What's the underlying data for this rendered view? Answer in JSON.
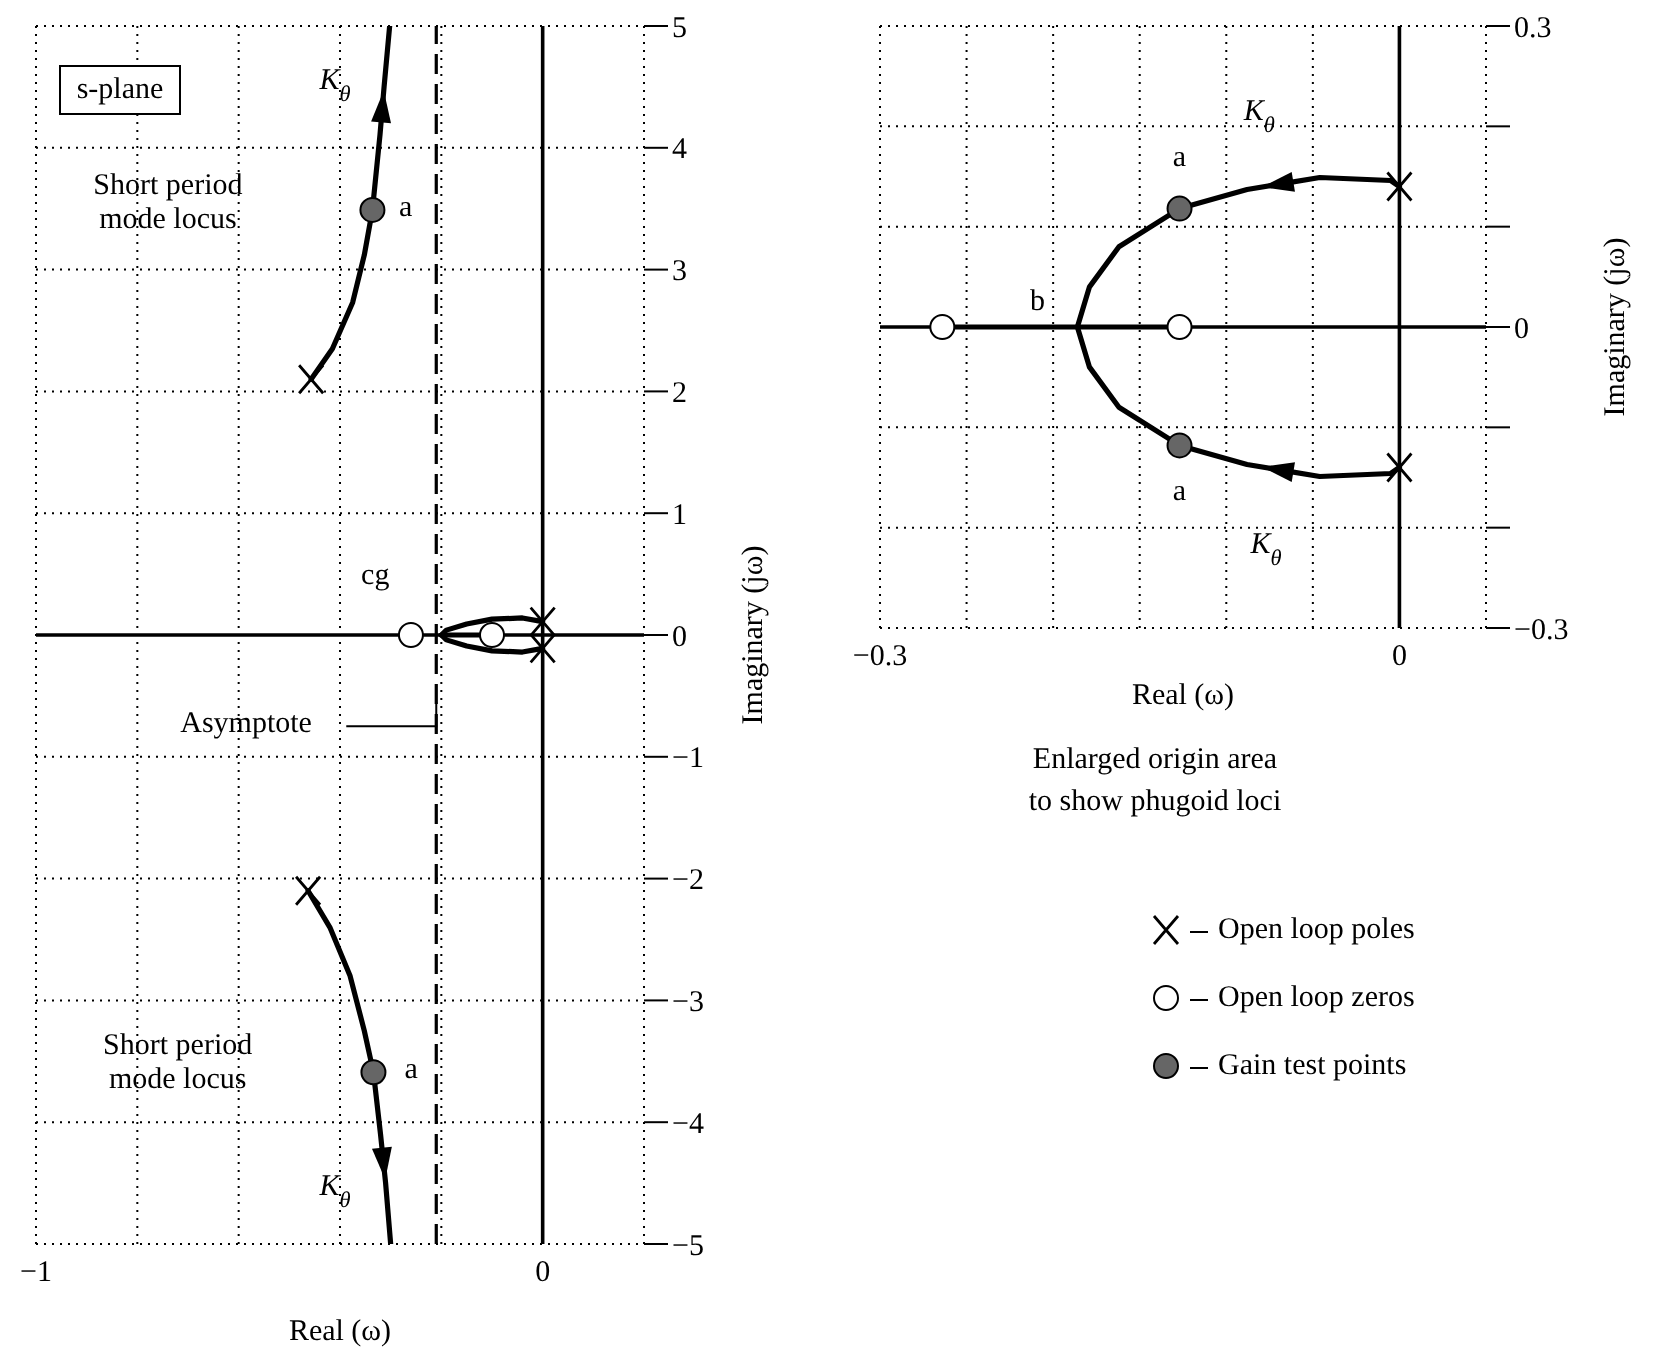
{
  "chart_data": [
    {
      "type": "scatter",
      "xlabel": "Real (ω)",
      "ylabel": "Imaginary (jω)",
      "xlim": [
        -1,
        0.2
      ],
      "ylim": [
        -5,
        5
      ],
      "xticks": [
        {
          "value": -1,
          "label": "−1"
        },
        {
          "value": -0.8,
          "label": null
        },
        {
          "value": -0.6,
          "label": null
        },
        {
          "value": -0.4,
          "label": null
        },
        {
          "value": -0.2,
          "label": null
        },
        0,
        {
          "value": 0.2,
          "label": null
        }
      ],
      "yticks": [
        {
          "value": -5,
          "label": "−5"
        },
        {
          "value": -4,
          "label": "−4"
        },
        {
          "value": -3,
          "label": "−3"
        },
        {
          "value": -2,
          "label": "−2"
        },
        {
          "value": -1,
          "label": "−1"
        },
        0,
        1,
        2,
        3,
        4,
        5
      ],
      "grid": true,
      "ref_lines": [
        {
          "axis": "x",
          "value": 0,
          "color": "#000000",
          "line_style": "solid"
        },
        {
          "axis": "y",
          "value": 0,
          "color": "#000000",
          "line_style": "solid"
        },
        {
          "axis": "x",
          "value": -0.21,
          "label": "Asymptote",
          "color": "#000000",
          "line_style": "dashed"
        }
      ],
      "series": [
        {
          "type": "line",
          "color": "#000000",
          "x": [
            -0.457,
            -0.415,
            -0.375,
            -0.352,
            -0.336,
            -0.321,
            -0.313,
            -0.302
          ],
          "values": [
            2.1,
            2.35,
            2.73,
            3.12,
            3.49,
            4.11,
            4.5,
            5
          ]
        },
        {
          "type": "line",
          "color": "#000000",
          "x": [
            -0.463,
            -0.42,
            -0.38,
            -0.352,
            -0.334,
            -0.32,
            -0.31,
            -0.3
          ],
          "values": [
            -2.1,
            -2.4,
            -2.8,
            -3.25,
            -3.59,
            -4.1,
            -4.5,
            -5
          ]
        },
        {
          "type": "line",
          "color": "#000000",
          "x": [
            0,
            -0.04,
            -0.1,
            -0.15,
            -0.19,
            -0.2,
            -0.19,
            -0.15,
            -0.1,
            -0.04,
            0
          ],
          "values": [
            0.11,
            0.14,
            0.13,
            0.09,
            0.04,
            0,
            -0.04,
            -0.09,
            -0.13,
            -0.14,
            -0.11
          ]
        },
        {
          "type": "line",
          "color": "#000000",
          "x": [
            -0.2,
            -0.1
          ],
          "values": [
            0,
            0
          ]
        },
        {
          "type": "scatter",
          "marker": "cross",
          "color": "#000000",
          "x": [
            -0.457,
            -0.463,
            0,
            0
          ],
          "values": [
            2.1,
            -2.1,
            0.11,
            -0.11
          ]
        },
        {
          "type": "scatter",
          "marker": "circle",
          "color": "#ffffff",
          "x": [
            -0.26,
            -0.1
          ],
          "values": [
            0,
            0
          ]
        },
        {
          "type": "scatter",
          "marker": "circle",
          "color": "#666666",
          "x": [
            -0.336,
            -0.334
          ],
          "values": [
            3.49,
            -3.59
          ]
        }
      ],
      "annotations": [
        "s-plane",
        "Short period\nmode locus",
        "Short period\nmode locus",
        "K$_{θ}$",
        "K$_{θ}$",
        "a",
        "a",
        "cg"
      ]
    },
    {
      "type": "scatter",
      "xlabel": "Real (ω)",
      "ylabel": "Imaginary (jω)",
      "xlim": [
        -0.3,
        0.05
      ],
      "ylim": [
        -0.3,
        0.3
      ],
      "xticks": [
        {
          "value": -0.3,
          "label": "−0.3"
        },
        {
          "value": -0.25,
          "label": null
        },
        {
          "value": -0.2,
          "label": null
        },
        {
          "value": -0.15,
          "label": null
        },
        {
          "value": -0.1,
          "label": null
        },
        {
          "value": -0.05,
          "label": null
        },
        0,
        {
          "value": 0.05,
          "label": null
        }
      ],
      "yticks": [
        {
          "value": -0.3,
          "label": "−0.3"
        },
        {
          "value": -0.2,
          "label": null
        },
        {
          "value": -0.1,
          "label": null
        },
        0,
        {
          "value": 0.1,
          "label": null
        },
        {
          "value": 0.2,
          "label": null
        },
        0.3
      ],
      "grid": true,
      "legend": "bottom",
      "ref_lines": [
        {
          "axis": "x",
          "value": 0,
          "color": "#000000",
          "line_style": "solid"
        },
        {
          "axis": "y",
          "value": 0,
          "color": "#000000",
          "line_style": "solid"
        }
      ],
      "series": [
        {
          "type": "line",
          "color": "#000000",
          "x": [
            0,
            -0.005,
            -0.046,
            -0.088,
            -0.127,
            -0.162,
            -0.179,
            -0.186
          ],
          "values": [
            0.14,
            0.146,
            0.149,
            0.137,
            0.118,
            0.08,
            0.04,
            0
          ]
        },
        {
          "type": "line",
          "color": "#000000",
          "x": [
            0,
            -0.005,
            -0.046,
            -0.088,
            -0.127,
            -0.162,
            -0.179,
            -0.186
          ],
          "values": [
            -0.14,
            -0.146,
            -0.149,
            -0.137,
            -0.118,
            -0.08,
            -0.04,
            0
          ]
        },
        {
          "type": "line",
          "color": "#000000",
          "x": [
            -0.264,
            -0.127
          ],
          "values": [
            0,
            0
          ]
        },
        {
          "type": "scatter",
          "name": "Open loop poles",
          "marker": "cross",
          "color": "#000000",
          "x": [
            0,
            0
          ],
          "values": [
            0.14,
            -0.14
          ]
        },
        {
          "type": "scatter",
          "name": "Open loop zeros",
          "marker": "circle",
          "color": "#ffffff",
          "x": [
            -0.264,
            -0.127
          ],
          "values": [
            0,
            0
          ]
        },
        {
          "type": "scatter",
          "name": "Gain test points",
          "marker": "circle",
          "color": "#666666",
          "x": [
            -0.127,
            -0.127
          ],
          "values": [
            0.118,
            -0.118
          ]
        }
      ],
      "annotations": [
        "Enlarged origin area\nto show phugoid loci",
        "K$_{θ}$",
        "K$_{θ}$",
        "a",
        "a",
        "b"
      ]
    }
  ]
}
